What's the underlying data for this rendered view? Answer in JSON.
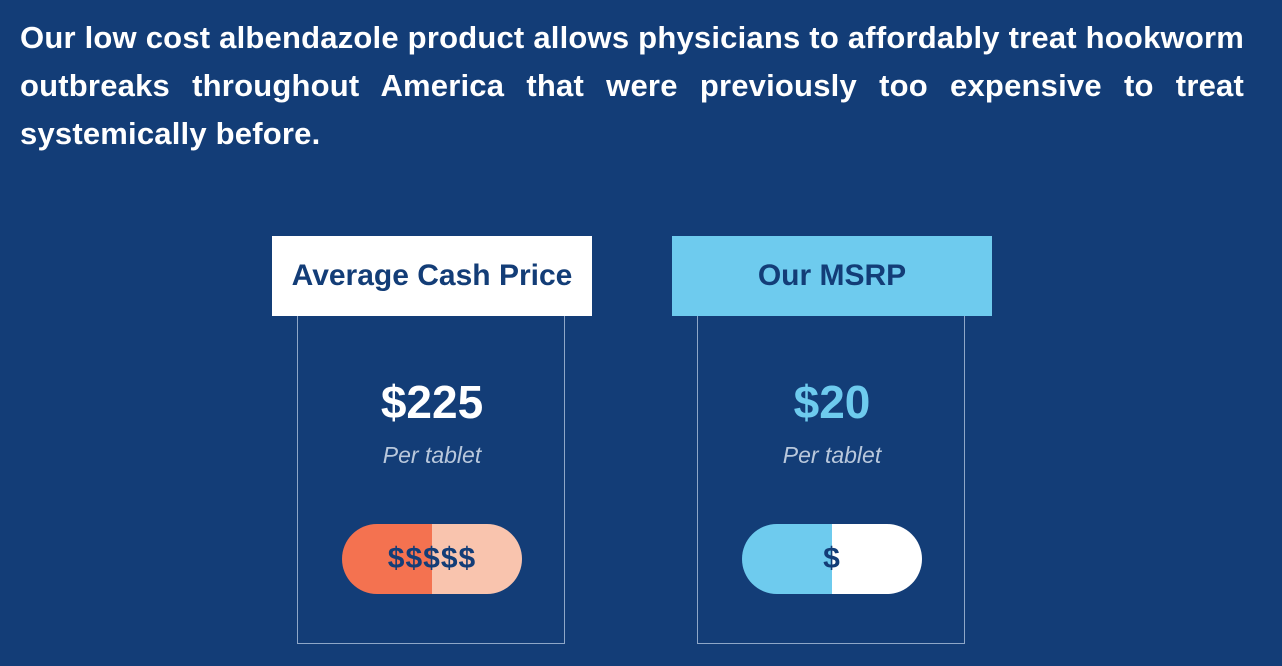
{
  "intro": {
    "text": "Our low cost albendazole product allows physicians to affordably treat hookworm outbreaks throughout America that were previously too expensive to treat systemically before."
  },
  "cards": [
    {
      "header": "Average Cash Price",
      "price": "$225",
      "unit": "Per tablet",
      "pill_label": "$$$$$"
    },
    {
      "header": "Our MSRP",
      "price": "$20",
      "unit": "Per tablet",
      "pill_label": "$"
    }
  ],
  "colors": {
    "background": "#133d77",
    "accent_blue": "#6ecbee",
    "accent_orange": "#f47250",
    "accent_peach": "#f9c4ae",
    "white": "#ffffff"
  }
}
